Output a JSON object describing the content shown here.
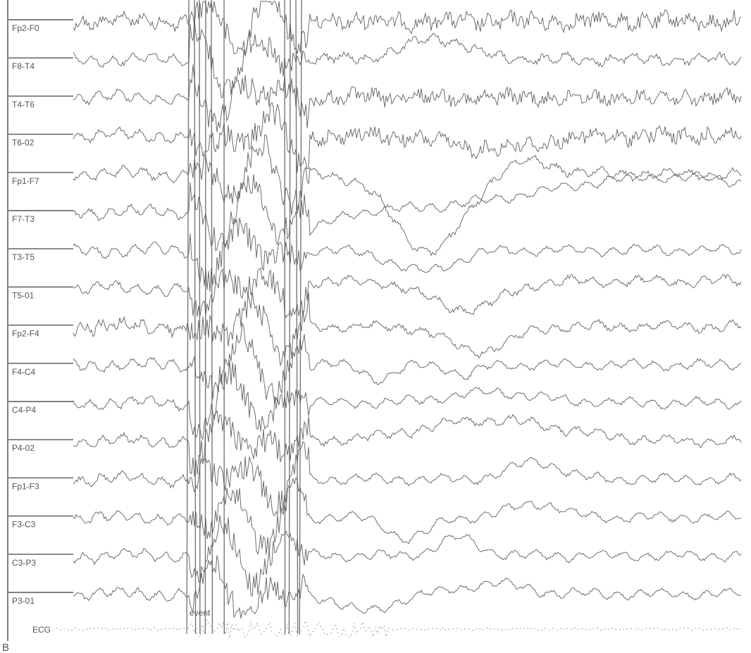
{
  "chart_data": {
    "type": "line",
    "panel_label": "B",
    "trace_color": "#555555",
    "background": "#ffffff",
    "channels": [
      "Fp2-F0",
      "F8-T4",
      "T4-T6",
      "T6-02",
      "Fp1-F7",
      "F7-T3",
      "T3-T5",
      "T5-01",
      "Fp2-F4",
      "F4-C4",
      "C4-P4",
      "P4-02",
      "Fp1-F3",
      "F3-C3",
      "C3-P3",
      "P3-01"
    ],
    "ecg_channel": "ECG",
    "annotations": [
      {
        "text": "event"
      }
    ],
    "grid": false,
    "legend": "none"
  }
}
